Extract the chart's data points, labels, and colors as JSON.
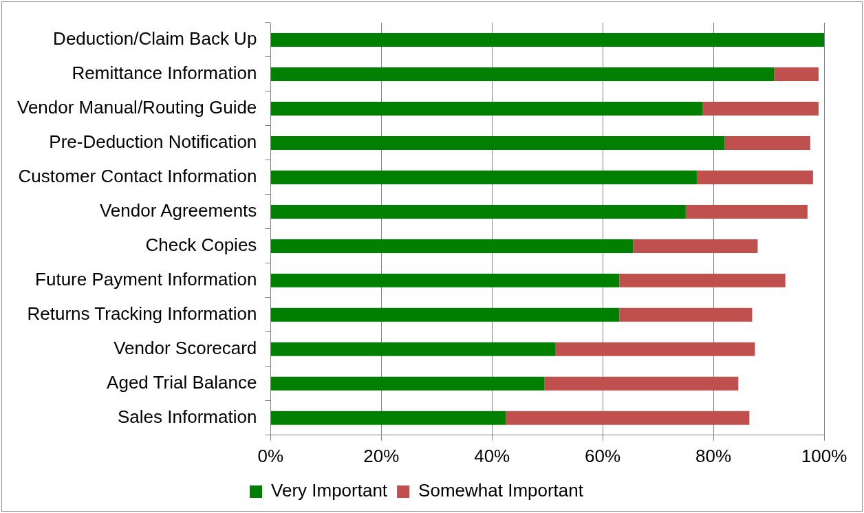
{
  "chart_data": {
    "type": "bar",
    "orientation": "horizontal",
    "stacked": true,
    "categories": [
      "Deduction/Claim Back Up",
      "Remittance Information",
      "Vendor Manual/Routing Guide",
      "Pre-Deduction Notification",
      "Customer Contact Information",
      "Vendor Agreements",
      "Check Copies",
      "Future Payment Information",
      "Returns Tracking Information",
      "Vendor Scorecard",
      "Aged Trial Balance",
      "Sales Information"
    ],
    "series": [
      {
        "name": "Very Important",
        "color": "#008000",
        "values": [
          100,
          91,
          78,
          82,
          77,
          75,
          65.5,
          63,
          63,
          51.5,
          49.5,
          42.5
        ]
      },
      {
        "name": "Somewhat Important",
        "color": "#c0504d",
        "values": [
          0,
          8,
          21,
          15.5,
          21,
          22,
          22.5,
          30,
          24,
          36,
          35,
          44
        ]
      }
    ],
    "xlim": [
      0,
      100
    ],
    "xticks": [
      {
        "value": 0,
        "label": "0%"
      },
      {
        "value": 20,
        "label": "20%"
      },
      {
        "value": 40,
        "label": "40%"
      },
      {
        "value": 60,
        "label": "60%"
      },
      {
        "value": 80,
        "label": "80%"
      },
      {
        "value": 100,
        "label": "100%"
      }
    ],
    "grid": "x",
    "legend": "bottom"
  }
}
